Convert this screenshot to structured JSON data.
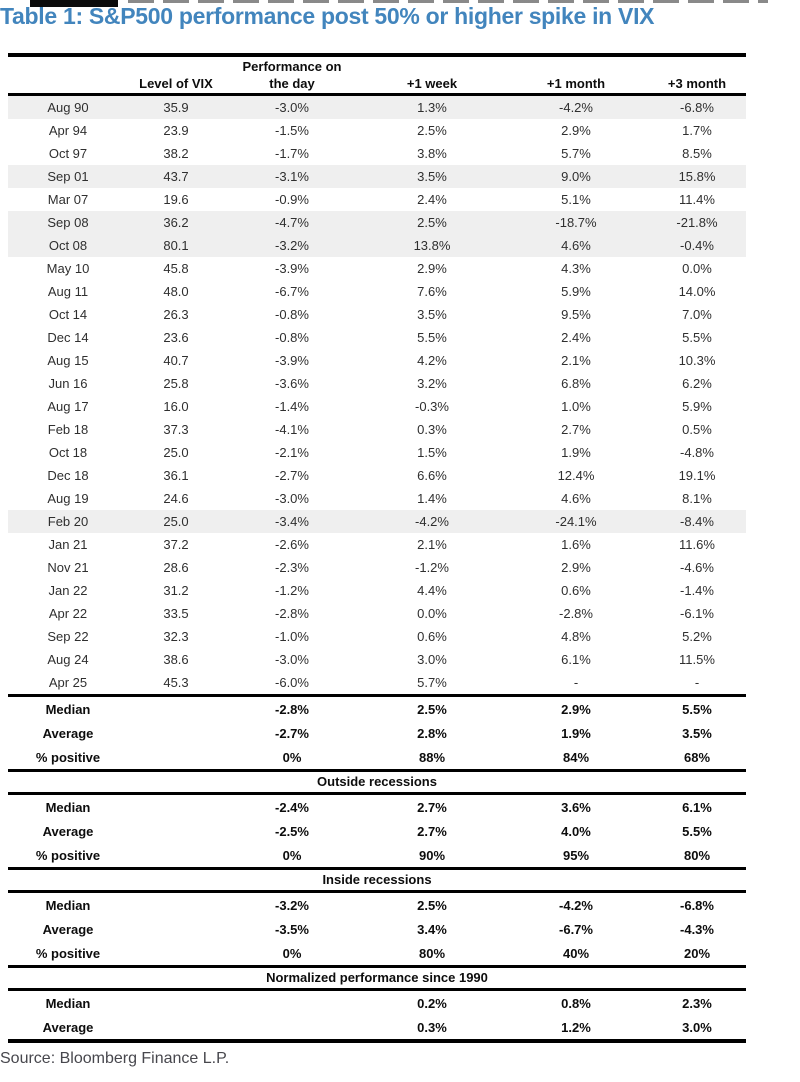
{
  "title": "Table 1: S&P500 performance post 50% or higher spike in VIX",
  "source": "Source: Bloomberg Finance L.P.",
  "table": {
    "header": {
      "perf_line1": "Performance on",
      "col_date": "",
      "col_vix": "Level of VIX",
      "col_day": "the day",
      "col_week": "+1 week",
      "col_month1": "+1 month",
      "col_month3": "+3 month"
    },
    "rows": [
      {
        "date": "Aug 90",
        "vix": "35.9",
        "day": "-3.0%",
        "week": "1.3%",
        "month1": "-4.2%",
        "month3": "-6.8%",
        "highlight": true
      },
      {
        "date": "Apr 94",
        "vix": "23.9",
        "day": "-1.5%",
        "week": "2.5%",
        "month1": "2.9%",
        "month3": "1.7%",
        "highlight": false
      },
      {
        "date": "Oct 97",
        "vix": "38.2",
        "day": "-1.7%",
        "week": "3.8%",
        "month1": "5.7%",
        "month3": "8.5%",
        "highlight": false
      },
      {
        "date": "Sep 01",
        "vix": "43.7",
        "day": "-3.1%",
        "week": "3.5%",
        "month1": "9.0%",
        "month3": "15.8%",
        "highlight": true
      },
      {
        "date": "Mar 07",
        "vix": "19.6",
        "day": "-0.9%",
        "week": "2.4%",
        "month1": "5.1%",
        "month3": "11.4%",
        "highlight": false
      },
      {
        "date": "Sep 08",
        "vix": "36.2",
        "day": "-4.7%",
        "week": "2.5%",
        "month1": "-18.7%",
        "month3": "-21.8%",
        "highlight": true
      },
      {
        "date": "Oct 08",
        "vix": "80.1",
        "day": "-3.2%",
        "week": "13.8%",
        "month1": "4.6%",
        "month3": "-0.4%",
        "highlight": true
      },
      {
        "date": "May 10",
        "vix": "45.8",
        "day": "-3.9%",
        "week": "2.9%",
        "month1": "4.3%",
        "month3": "0.0%",
        "highlight": false
      },
      {
        "date": "Aug 11",
        "vix": "48.0",
        "day": "-6.7%",
        "week": "7.6%",
        "month1": "5.9%",
        "month3": "14.0%",
        "highlight": false
      },
      {
        "date": "Oct 14",
        "vix": "26.3",
        "day": "-0.8%",
        "week": "3.5%",
        "month1": "9.5%",
        "month3": "7.0%",
        "highlight": false
      },
      {
        "date": "Dec 14",
        "vix": "23.6",
        "day": "-0.8%",
        "week": "5.5%",
        "month1": "2.4%",
        "month3": "5.5%",
        "highlight": false
      },
      {
        "date": "Aug 15",
        "vix": "40.7",
        "day": "-3.9%",
        "week": "4.2%",
        "month1": "2.1%",
        "month3": "10.3%",
        "highlight": false
      },
      {
        "date": "Jun 16",
        "vix": "25.8",
        "day": "-3.6%",
        "week": "3.2%",
        "month1": "6.8%",
        "month3": "6.2%",
        "highlight": false
      },
      {
        "date": "Aug 17",
        "vix": "16.0",
        "day": "-1.4%",
        "week": "-0.3%",
        "month1": "1.0%",
        "month3": "5.9%",
        "highlight": false
      },
      {
        "date": "Feb 18",
        "vix": "37.3",
        "day": "-4.1%",
        "week": "0.3%",
        "month1": "2.7%",
        "month3": "0.5%",
        "highlight": false
      },
      {
        "date": "Oct 18",
        "vix": "25.0",
        "day": "-2.1%",
        "week": "1.5%",
        "month1": "1.9%",
        "month3": "-4.8%",
        "highlight": false
      },
      {
        "date": "Dec 18",
        "vix": "36.1",
        "day": "-2.7%",
        "week": "6.6%",
        "month1": "12.4%",
        "month3": "19.1%",
        "highlight": false
      },
      {
        "date": "Aug 19",
        "vix": "24.6",
        "day": "-3.0%",
        "week": "1.4%",
        "month1": "4.6%",
        "month3": "8.1%",
        "highlight": false
      },
      {
        "date": "Feb 20",
        "vix": "25.0",
        "day": "-3.4%",
        "week": "-4.2%",
        "month1": "-24.1%",
        "month3": "-8.4%",
        "highlight": true
      },
      {
        "date": "Jan 21",
        "vix": "37.2",
        "day": "-2.6%",
        "week": "2.1%",
        "month1": "1.6%",
        "month3": "11.6%",
        "highlight": false
      },
      {
        "date": "Nov 21",
        "vix": "28.6",
        "day": "-2.3%",
        "week": "-1.2%",
        "month1": "2.9%",
        "month3": "-4.6%",
        "highlight": false
      },
      {
        "date": "Jan 22",
        "vix": "31.2",
        "day": "-1.2%",
        "week": "4.4%",
        "month1": "0.6%",
        "month3": "-1.4%",
        "highlight": false
      },
      {
        "date": "Apr 22",
        "vix": "33.5",
        "day": "-2.8%",
        "week": "0.0%",
        "month1": "-2.8%",
        "month3": "-6.1%",
        "highlight": false
      },
      {
        "date": "Sep 22",
        "vix": "32.3",
        "day": "-1.0%",
        "week": "0.6%",
        "month1": "4.8%",
        "month3": "5.2%",
        "highlight": false
      },
      {
        "date": "Aug 24",
        "vix": "38.6",
        "day": "-3.0%",
        "week": "3.0%",
        "month1": "6.1%",
        "month3": "11.5%",
        "highlight": false
      },
      {
        "date": "Apr 25",
        "vix": "45.3",
        "day": "-6.0%",
        "week": "5.7%",
        "month1": "-",
        "month3": "-",
        "highlight": false
      }
    ],
    "summary_all": {
      "rows": [
        {
          "label": "Median",
          "day": "-2.8%",
          "week": "2.5%",
          "month1": "2.9%",
          "month3": "5.5%"
        },
        {
          "label": "Average",
          "day": "-2.7%",
          "week": "2.8%",
          "month1": "1.9%",
          "month3": "3.5%"
        },
        {
          "label": "% positive",
          "day": "0%",
          "week": "88%",
          "month1": "84%",
          "month3": "68%"
        }
      ]
    },
    "sections": [
      {
        "title": "Outside recessions",
        "rows": [
          {
            "label": "Median",
            "day": "-2.4%",
            "week": "2.7%",
            "month1": "3.6%",
            "month3": "6.1%"
          },
          {
            "label": "Average",
            "day": "-2.5%",
            "week": "2.7%",
            "month1": "4.0%",
            "month3": "5.5%"
          },
          {
            "label": "% positive",
            "day": "0%",
            "week": "90%",
            "month1": "95%",
            "month3": "80%"
          }
        ]
      },
      {
        "title": "Inside recessions",
        "rows": [
          {
            "label": "Median",
            "day": "-3.2%",
            "week": "2.5%",
            "month1": "-4.2%",
            "month3": "-6.8%"
          },
          {
            "label": "Average",
            "day": "-3.5%",
            "week": "3.4%",
            "month1": "-6.7%",
            "month3": "-4.3%"
          },
          {
            "label": "% positive",
            "day": "0%",
            "week": "80%",
            "month1": "40%",
            "month3": "20%"
          }
        ]
      },
      {
        "title": "Normalized performance since 1990",
        "rows": [
          {
            "label": "Median",
            "day": "",
            "week": "0.2%",
            "month1": "0.8%",
            "month3": "2.3%"
          },
          {
            "label": "Average",
            "day": "",
            "week": "0.3%",
            "month1": "1.2%",
            "month3": "3.0%"
          }
        ]
      }
    ],
    "colors": {
      "title_blue": "#4285bd",
      "row_highlight": "#efefef",
      "rule_black": "#000000"
    }
  }
}
